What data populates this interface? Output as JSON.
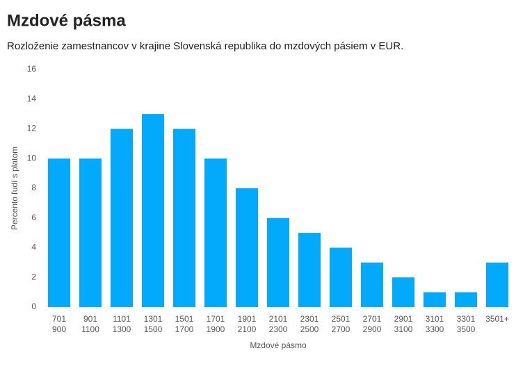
{
  "chart_data": {
    "type": "bar",
    "title": "Mzdové pásma",
    "subtitle": "Rozloženie zamestnancov v krajine Slovenská republika do mzdových pásiem v EUR.",
    "x_label": "Mzdové pásmo",
    "y_label": "Percento ľudí s platom",
    "categories": [
      [
        "701",
        "900"
      ],
      [
        "901",
        "1100"
      ],
      [
        "1101",
        "1300"
      ],
      [
        "1301",
        "1500"
      ],
      [
        "1501",
        "1700"
      ],
      [
        "1701",
        "1900"
      ],
      [
        "1901",
        "2100"
      ],
      [
        "2101",
        "2300"
      ],
      [
        "2301",
        "2500"
      ],
      [
        "2501",
        "2700"
      ],
      [
        "2701",
        "2900"
      ],
      [
        "2901",
        "3100"
      ],
      [
        "3101",
        "3300"
      ],
      [
        "3301",
        "3500"
      ],
      [
        "3501+"
      ]
    ],
    "values": [
      10,
      10,
      12,
      13,
      12,
      10,
      8,
      6,
      5,
      4,
      3,
      2,
      1,
      1,
      3
    ],
    "color": "#03a9fb",
    "ylim": [
      0,
      16
    ],
    "yticks": [
      0,
      2,
      4,
      6,
      8,
      10,
      12,
      14,
      16
    ],
    "grid": false
  }
}
